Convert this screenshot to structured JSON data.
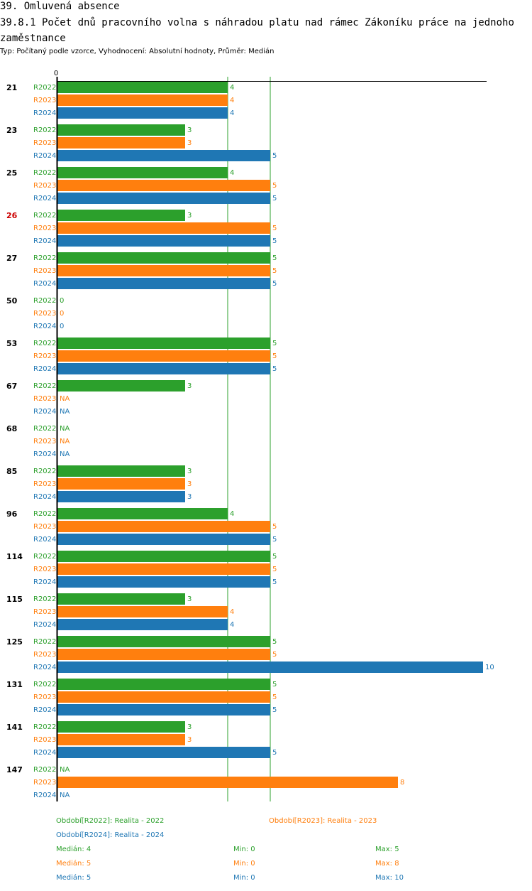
{
  "heading": "39. Omluvená absence",
  "subheading": "39.8.1 Počet dnů pracovního volna s náhradou platu nad rámec Zákoníku práce na jednoho zaměstnance",
  "type_line": "Typ: Počítaný podle vzorce, Vyhodnocení: Absolutní hodnoty, Průměr: Medián",
  "colors": {
    "R2022": "#2ca02c",
    "R2023": "#ff7f0e",
    "R2024": "#1f77b4",
    "highlight": "#cc0000",
    "ref_line": "#2ca02c"
  },
  "chart_data": {
    "type": "bar",
    "orientation": "horizontal",
    "axis_zero_label": "0",
    "xlim": [
      0,
      10
    ],
    "reference_lines": [
      4,
      5
    ],
    "highlighted_category": "26",
    "series_names": [
      "R2022",
      "R2023",
      "R2024"
    ],
    "categories": [
      {
        "label": "21",
        "values": [
          4,
          4,
          4
        ]
      },
      {
        "label": "23",
        "values": [
          3,
          3,
          5
        ]
      },
      {
        "label": "25",
        "values": [
          4,
          5,
          5
        ]
      },
      {
        "label": "26",
        "values": [
          3,
          5,
          5
        ]
      },
      {
        "label": "27",
        "values": [
          5,
          5,
          5
        ]
      },
      {
        "label": "50",
        "values": [
          0,
          0,
          0
        ]
      },
      {
        "label": "53",
        "values": [
          5,
          5,
          5
        ]
      },
      {
        "label": "67",
        "values": [
          3,
          "NA",
          "NA"
        ]
      },
      {
        "label": "68",
        "values": [
          "NA",
          "NA",
          "NA"
        ]
      },
      {
        "label": "85",
        "values": [
          3,
          3,
          3
        ]
      },
      {
        "label": "96",
        "values": [
          4,
          5,
          5
        ]
      },
      {
        "label": "114",
        "values": [
          5,
          5,
          5
        ]
      },
      {
        "label": "115",
        "values": [
          3,
          4,
          4
        ]
      },
      {
        "label": "125",
        "values": [
          5,
          5,
          10
        ]
      },
      {
        "label": "131",
        "values": [
          5,
          5,
          5
        ]
      },
      {
        "label": "141",
        "values": [
          3,
          3,
          5
        ]
      },
      {
        "label": "147",
        "values": [
          "NA",
          8,
          "NA"
        ]
      }
    ]
  },
  "legend": {
    "period_2022": "Období[R2022]: Realita - 2022",
    "period_2023": "Období[R2023]: Realita - 2023",
    "period_2024": "Období[R2024]: Realita - 2024",
    "stats": [
      {
        "median": "Medián: 4",
        "min": "Min: 0",
        "max": "Max: 5"
      },
      {
        "median": "Medián: 5",
        "min": "Min: 0",
        "max": "Max: 8"
      },
      {
        "median": "Medián: 5",
        "min": "Min: 0",
        "max": "Max: 10"
      }
    ]
  }
}
